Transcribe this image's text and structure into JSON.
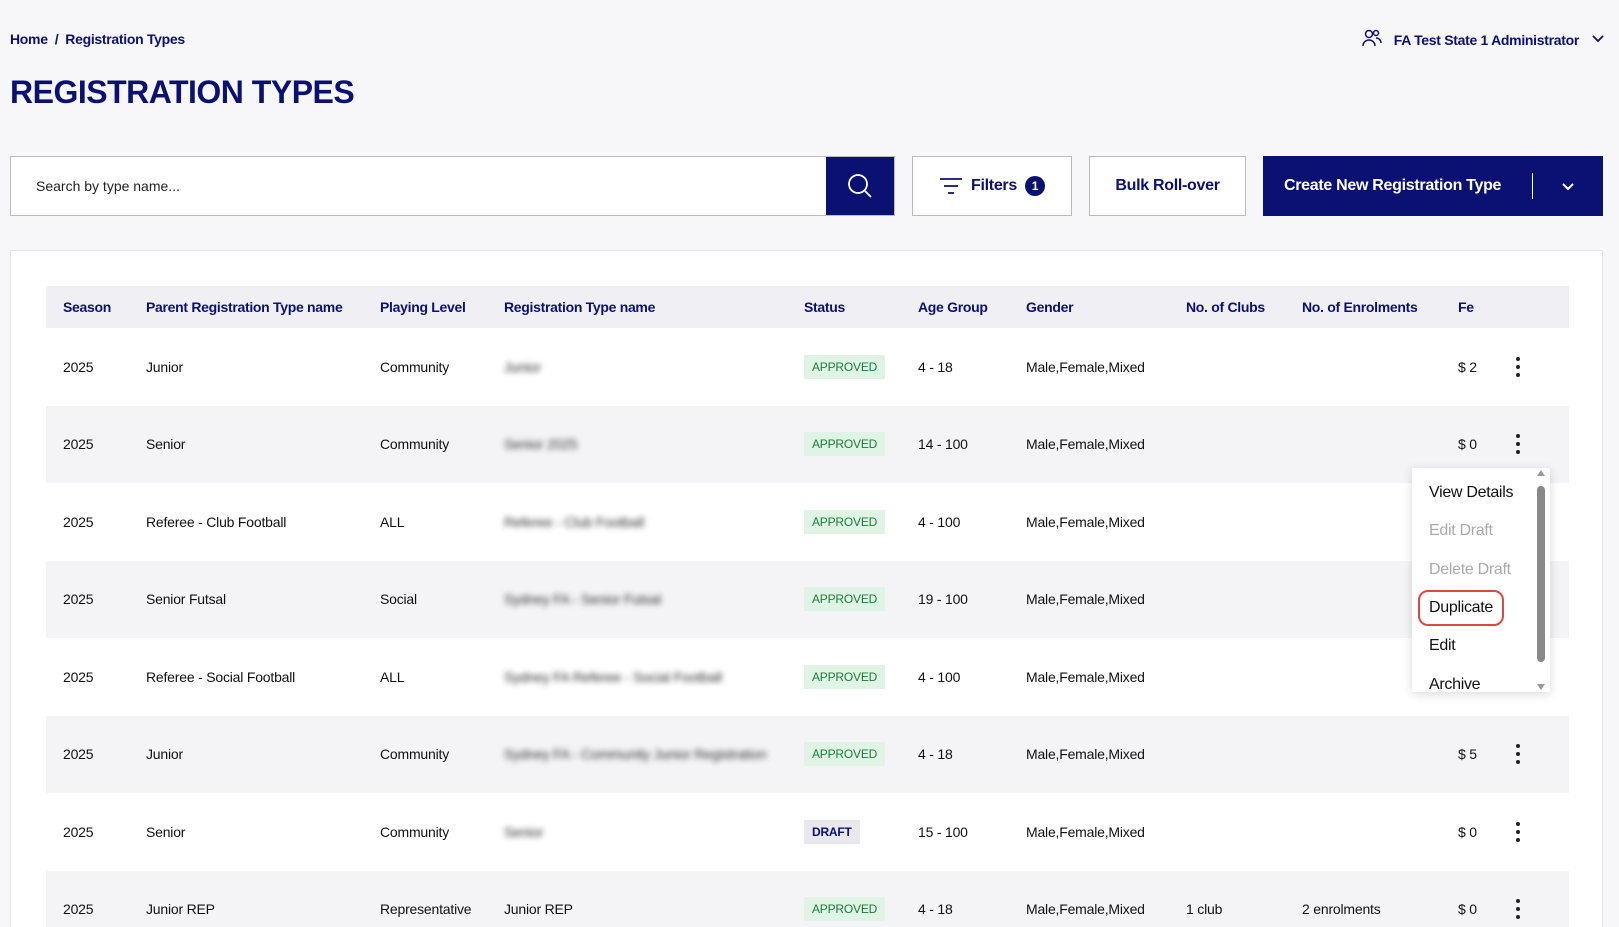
{
  "breadcrumb": {
    "home": "Home",
    "separator": "/",
    "current": "Registration Types"
  },
  "user": {
    "name": "FA Test State 1 Administrator",
    "icon": "user-group-icon"
  },
  "page": {
    "title": "REGISTRATION TYPES"
  },
  "toolbar": {
    "search_placeholder": "Search by type name...",
    "filters_label": "Filters",
    "filters_count": "1",
    "bulk_label": "Bulk Roll-over",
    "create_label": "Create New Registration Type"
  },
  "table": {
    "headers": [
      "Season",
      "Parent Registration Type name",
      "Playing Level",
      "Registration Type name",
      "Status",
      "Age Group",
      "Gender",
      "No. of Clubs",
      "No. of Enrolments",
      "Fe"
    ],
    "rows": [
      {
        "season": "2025",
        "parent": "Junior",
        "level": "Community",
        "name": "Junior",
        "status": "APPROVED",
        "age": "4 - 18",
        "gender": "Male,Female,Mixed",
        "clubs": "",
        "enrolments": "",
        "fee": "$ 2"
      },
      {
        "season": "2025",
        "parent": "Senior",
        "level": "Community",
        "name": "Senior 2025",
        "status": "APPROVED",
        "age": "14 - 100",
        "gender": "Male,Female,Mixed",
        "clubs": "",
        "enrolments": "",
        "fee": "$ 0"
      },
      {
        "season": "2025",
        "parent": "Referee - Club Football",
        "level": "ALL",
        "name": "Referee - Club Football",
        "status": "APPROVED",
        "age": "4 - 100",
        "gender": "Male,Female,Mixed",
        "clubs": "",
        "enrolments": "",
        "fee": ""
      },
      {
        "season": "2025",
        "parent": "Senior Futsal",
        "level": "Social",
        "name": "Sydney FA - Senior Futsal",
        "status": "APPROVED",
        "age": "19 - 100",
        "gender": "Male,Female,Mixed",
        "clubs": "",
        "enrolments": "",
        "fee": ""
      },
      {
        "season": "2025",
        "parent": "Referee - Social Football",
        "level": "ALL",
        "name": "Sydney FA Referee - Social Football",
        "status": "APPROVED",
        "age": "4 - 100",
        "gender": "Male,Female,Mixed",
        "clubs": "",
        "enrolments": "",
        "fee": ""
      },
      {
        "season": "2025",
        "parent": "Junior",
        "level": "Community",
        "name": "Sydney FA - Community Junior Registration",
        "status": "APPROVED",
        "age": "4 - 18",
        "gender": "Male,Female,Mixed",
        "clubs": "",
        "enrolments": "",
        "fee": "$ 5"
      },
      {
        "season": "2025",
        "parent": "Senior",
        "level": "Community",
        "name": "Senior",
        "status": "DRAFT",
        "age": "15 - 100",
        "gender": "Male,Female,Mixed",
        "clubs": "",
        "enrolments": "",
        "fee": "$ 0"
      },
      {
        "season": "2025",
        "parent": "Junior REP",
        "level": "Representative",
        "name": "Junior REP",
        "status": "APPROVED",
        "age": "4 - 18",
        "gender": "Male,Female,Mixed",
        "clubs": "1 club",
        "enrolments": "2 enrolments",
        "fee": "$ 0"
      }
    ]
  },
  "row_menu": {
    "items": [
      {
        "label": "View Details",
        "disabled": false
      },
      {
        "label": "Edit Draft",
        "disabled": true
      },
      {
        "label": "Delete Draft",
        "disabled": true
      },
      {
        "label": "Duplicate",
        "disabled": false,
        "highlight": true
      },
      {
        "label": "Edit",
        "disabled": false
      },
      {
        "label": "Archive",
        "disabled": false
      }
    ]
  },
  "colors": {
    "brand": "#0a1172",
    "approved_bg": "#dff4e4",
    "approved_text": "#1c7c3a",
    "highlight_border": "#d94a3f"
  }
}
